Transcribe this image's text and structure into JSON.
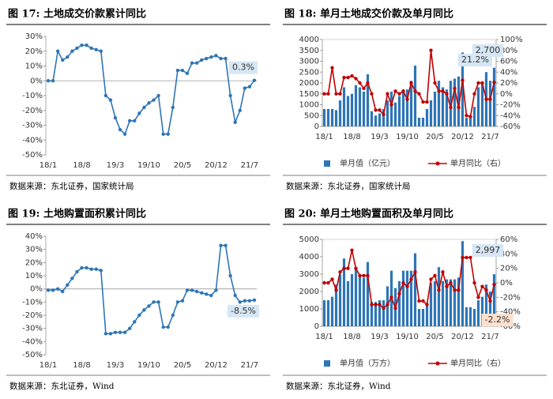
{
  "chart_data": [
    {
      "type": "line",
      "title": "图 17:  土地成交价款累计同比",
      "source": "数据来源：东北证券，国家统计局",
      "categories": [
        "18/1",
        null,
        null,
        null,
        null,
        null,
        null,
        "18/8",
        null,
        null,
        null,
        null,
        null,
        null,
        "19/3",
        null,
        null,
        null,
        null,
        null,
        null,
        "19/10",
        null,
        null,
        null,
        null,
        null,
        null,
        "20/5",
        null,
        null,
        null,
        null,
        null,
        null,
        "20/12",
        null,
        null,
        null,
        null,
        null,
        null,
        "21/7",
        null
      ],
      "series": [
        {
          "color": "#2e75b6",
          "values": [
            0,
            0,
            20,
            14,
            16,
            20,
            22,
            24,
            24,
            22,
            21,
            20,
            -10,
            -13,
            -25,
            -33,
            -36,
            -27,
            -27,
            -22,
            -18,
            -15,
            -13,
            -10,
            -36,
            -36,
            -18,
            7,
            7,
            5,
            12,
            12,
            14,
            15,
            16,
            17,
            15,
            15,
            -10,
            -28,
            -20,
            -5,
            -4,
            0.3
          ],
          "value_labels": [
            null,
            null,
            null,
            null,
            null,
            null,
            null,
            null,
            null,
            null,
            null,
            null,
            null,
            null,
            null,
            null,
            null,
            null,
            null,
            null,
            null,
            null,
            null,
            null,
            null,
            null,
            null,
            null,
            null,
            null,
            null,
            null,
            null,
            null,
            null,
            null,
            null,
            null,
            null,
            null,
            null,
            null,
            null,
            "0.3%"
          ]
        }
      ],
      "ylim": [
        -50,
        30
      ],
      "yticks": [
        {
          "value": -50,
          "label": "-50%"
        },
        {
          "value": -40,
          "label": "-40%"
        },
        {
          "value": -30,
          "label": "-30%"
        },
        {
          "value": -20,
          "label": "-20%"
        },
        {
          "value": -10,
          "label": "-10%"
        },
        {
          "value": 0,
          "label": "0%"
        },
        {
          "value": 10,
          "label": "10%"
        },
        {
          "value": 20,
          "label": "20%"
        },
        {
          "value": 30,
          "label": "30%"
        }
      ]
    },
    {
      "type": "bar",
      "title": "图 18:  单月土地成交价款及单月同比",
      "source": "数据来源：东北证券，国家统计局",
      "legend": "bottom",
      "categories": [
        "18/1",
        null,
        null,
        null,
        null,
        null,
        null,
        "18/8",
        null,
        null,
        null,
        null,
        null,
        null,
        "19/3",
        null,
        null,
        null,
        null,
        null,
        null,
        "19/10",
        null,
        null,
        null,
        null,
        null,
        null,
        "20/5",
        null,
        null,
        null,
        null,
        null,
        null,
        "20/12",
        null,
        null,
        null,
        null,
        null,
        null,
        "21/7",
        null
      ],
      "series": [
        {
          "name": "单月值（亿元）",
          "type": "bar",
          "color": "#2e75b6",
          "values": [
            800,
            800,
            800,
            750,
            1200,
            1800,
            1400,
            1500,
            1900,
            1800,
            1600,
            2400,
            700,
            500,
            600,
            800,
            1200,
            1600,
            1100,
            1400,
            1700,
            1700,
            2100,
            2800,
            400,
            400,
            800,
            1200,
            1600,
            2100,
            1800,
            1700,
            2100,
            2200,
            2300,
            3400,
            400,
            400,
            900,
            1800,
            2000,
            2500,
            2100,
            2700
          ],
          "value_labels": [
            null,
            null,
            null,
            null,
            null,
            null,
            null,
            null,
            null,
            null,
            null,
            null,
            null,
            null,
            null,
            null,
            null,
            null,
            null,
            null,
            null,
            null,
            null,
            null,
            null,
            null,
            null,
            null,
            null,
            null,
            null,
            null,
            null,
            null,
            null,
            null,
            null,
            null,
            null,
            null,
            null,
            null,
            null,
            "2,700"
          ]
        },
        {
          "name": "单月同比（右）",
          "type": "line",
          "axis": "y2",
          "color": "#c00000",
          "values": [
            0,
            0,
            48,
            0,
            0,
            30,
            30,
            33,
            28,
            20,
            10,
            20,
            0,
            -30,
            -30,
            -38,
            0,
            -20,
            5,
            0,
            5,
            -10,
            20,
            5,
            0,
            -15,
            -15,
            80,
            20,
            5,
            5,
            0,
            -25,
            10,
            -25,
            25,
            -40,
            -42,
            0,
            20,
            20,
            -10,
            -10,
            21.2
          ],
          "value_labels": [
            null,
            null,
            null,
            null,
            null,
            null,
            null,
            null,
            null,
            null,
            null,
            null,
            null,
            null,
            null,
            null,
            null,
            null,
            null,
            null,
            null,
            null,
            null,
            null,
            null,
            null,
            null,
            null,
            null,
            null,
            null,
            null,
            null,
            null,
            null,
            null,
            null,
            null,
            null,
            null,
            null,
            null,
            null,
            "21.2%"
          ]
        }
      ],
      "ylim": [
        0,
        4000
      ],
      "yticks": [
        0,
        500,
        1000,
        1500,
        2000,
        2500,
        3000,
        3500,
        4000
      ],
      "y2lim": [
        -60,
        100
      ],
      "y2ticks": [
        {
          "value": -60,
          "label": "-60%"
        },
        {
          "value": -40,
          "label": "-40%"
        },
        {
          "value": -20,
          "label": "-20%"
        },
        {
          "value": 0,
          "label": "0%"
        },
        {
          "value": 20,
          "label": "20%"
        },
        {
          "value": 40,
          "label": "40%"
        },
        {
          "value": 60,
          "label": "60%"
        },
        {
          "value": 80,
          "label": "80%"
        },
        {
          "value": 100,
          "label": "100%"
        }
      ]
    },
    {
      "type": "line",
      "title": "图 19:  土地购置面积累计同比",
      "source": "数据来源：东北证券，Wind",
      "categories": [
        "18/1",
        null,
        null,
        null,
        null,
        null,
        null,
        "18/8",
        null,
        null,
        null,
        null,
        null,
        null,
        "19/3",
        null,
        null,
        null,
        null,
        null,
        null,
        "19/10",
        null,
        null,
        null,
        null,
        null,
        null,
        "20/5",
        null,
        null,
        null,
        null,
        null,
        null,
        "20/12",
        null,
        null,
        null,
        null,
        null,
        null,
        "21/7",
        null
      ],
      "series": [
        {
          "color": "#2e75b6",
          "values": [
            -1,
            -1,
            0,
            -2,
            3,
            8,
            13,
            16,
            16,
            15,
            15,
            14,
            -34,
            -34,
            -33,
            -33,
            -33,
            -30,
            -25,
            -20,
            -16,
            -13,
            -10,
            -10,
            -29,
            -29,
            -20,
            -10,
            -9,
            -1,
            -1,
            -2,
            -3,
            -4,
            -5,
            -1,
            33,
            33,
            10,
            -5,
            -10,
            -9,
            -9,
            -8.5
          ],
          "value_labels": [
            null,
            null,
            null,
            null,
            null,
            null,
            null,
            null,
            null,
            null,
            null,
            null,
            null,
            null,
            null,
            null,
            null,
            null,
            null,
            null,
            null,
            null,
            null,
            null,
            null,
            null,
            null,
            null,
            null,
            null,
            null,
            null,
            null,
            null,
            null,
            null,
            null,
            null,
            null,
            null,
            null,
            null,
            null,
            "-8.5%"
          ]
        }
      ],
      "ylim": [
        -50,
        40
      ],
      "yticks": [
        {
          "value": -50,
          "label": "-50%"
        },
        {
          "value": -40,
          "label": "-40%"
        },
        {
          "value": -30,
          "label": "-30%"
        },
        {
          "value": -20,
          "label": "-20%"
        },
        {
          "value": -10,
          "label": "-10%"
        },
        {
          "value": 0,
          "label": "0%"
        },
        {
          "value": 10,
          "label": "10%"
        },
        {
          "value": 20,
          "label": "20%"
        },
        {
          "value": 30,
          "label": "30%"
        },
        {
          "value": 40,
          "label": "40%"
        }
      ]
    },
    {
      "type": "bar",
      "title": "图 20:  单月土地购置面积及单月同比",
      "source": "数据来源：东北证券，Wind",
      "legend": "bottom",
      "categories": [
        "18/1",
        null,
        null,
        null,
        null,
        null,
        null,
        "18/8",
        null,
        null,
        null,
        null,
        null,
        null,
        "19/3",
        null,
        null,
        null,
        null,
        null,
        null,
        "19/10",
        null,
        null,
        null,
        null,
        null,
        null,
        "20/5",
        null,
        null,
        null,
        null,
        null,
        null,
        "20/12",
        null,
        null,
        null,
        null,
        null,
        null,
        "21/7",
        null
      ],
      "series": [
        {
          "name": "单月值（万方）",
          "type": "bar",
          "color": "#2e75b6",
          "values": [
            1500,
            1500,
            1700,
            2400,
            3000,
            3900,
            2600,
            3000,
            3300,
            2900,
            2800,
            3700,
            1400,
            1400,
            1500,
            1500,
            2300,
            3200,
            2200,
            2600,
            3200,
            3200,
            3200,
            4200,
            1000,
            1000,
            1300,
            2500,
            2600,
            3400,
            2600,
            2700,
            2700,
            2700,
            2800,
            4900,
            1100,
            1100,
            1000,
            1500,
            1700,
            2400,
            2000,
            2997
          ],
          "value_labels": [
            null,
            null,
            null,
            null,
            null,
            null,
            null,
            null,
            null,
            null,
            null,
            null,
            null,
            null,
            null,
            null,
            null,
            null,
            null,
            null,
            null,
            null,
            null,
            null,
            null,
            null,
            null,
            null,
            null,
            null,
            null,
            null,
            null,
            null,
            null,
            null,
            null,
            null,
            null,
            null,
            null,
            null,
            null,
            "2,997"
          ]
        },
        {
          "name": "单月同比（右）",
          "type": "line",
          "axis": "y2",
          "color": "#c00000",
          "values": [
            0,
            0,
            5,
            -10,
            15,
            20,
            20,
            45,
            20,
            10,
            10,
            10,
            -30,
            -30,
            -30,
            -35,
            -30,
            -20,
            -35,
            -15,
            0,
            -5,
            5,
            15,
            -25,
            -25,
            -30,
            5,
            10,
            -10,
            15,
            -5,
            0,
            -10,
            -10,
            35,
            35,
            35,
            0,
            -20,
            -5,
            -10,
            -25,
            -2.2
          ],
          "value_labels": [
            null,
            null,
            null,
            null,
            null,
            null,
            null,
            null,
            null,
            null,
            null,
            null,
            null,
            null,
            null,
            null,
            null,
            null,
            null,
            null,
            null,
            null,
            null,
            null,
            null,
            null,
            null,
            null,
            null,
            null,
            null,
            null,
            null,
            null,
            null,
            null,
            null,
            null,
            null,
            null,
            null,
            null,
            null,
            "-2.2%"
          ]
        }
      ],
      "ylim": [
        0,
        5000
      ],
      "yticks": [
        0,
        1000,
        2000,
        3000,
        4000,
        5000
      ],
      "y2lim": [
        -60,
        60
      ],
      "y2ticks": [
        {
          "value": -60,
          "label": "-60%"
        },
        {
          "value": -40,
          "label": "-40%"
        },
        {
          "value": -20,
          "label": "-20%"
        },
        {
          "value": 0,
          "label": "0%"
        },
        {
          "value": 20,
          "label": "20%"
        },
        {
          "value": 40,
          "label": "40%"
        },
        {
          "value": 60,
          "label": "60%"
        }
      ]
    }
  ]
}
